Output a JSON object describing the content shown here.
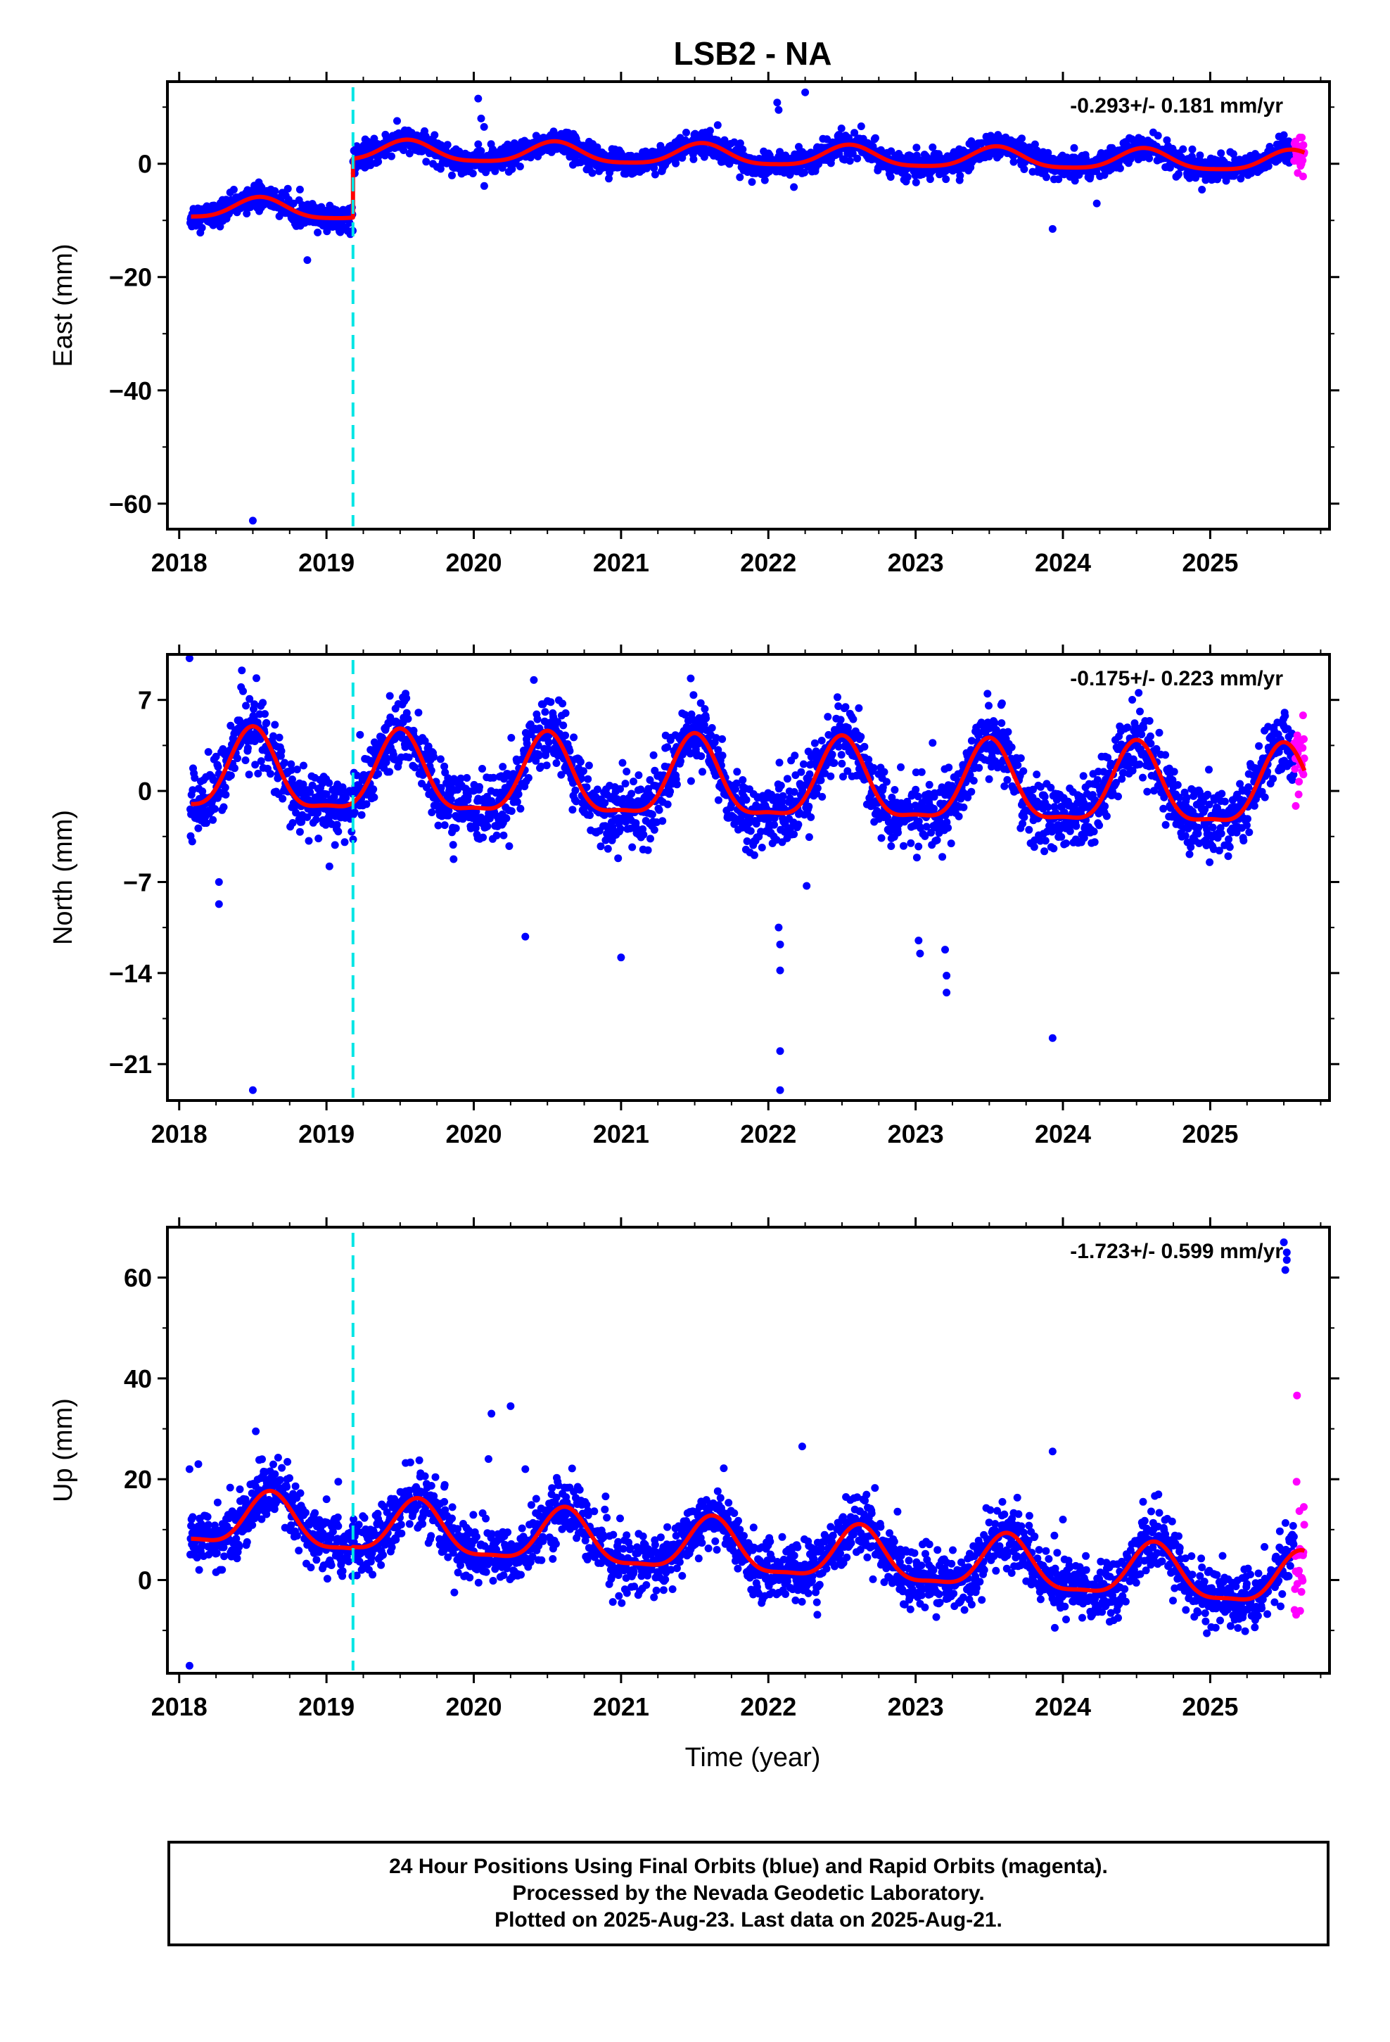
{
  "colors": {
    "final_orbits": "#0000ff",
    "rapid_orbits": "#ff00ff",
    "model": "#ff0000",
    "equipment_change": "#00e5e5"
  },
  "chart_data": {
    "type": "scatter",
    "title": "LSB2 - NA",
    "xlabel": "Time (year)",
    "x_ticks": [
      2018,
      2019,
      2020,
      2021,
      2022,
      2023,
      2024,
      2025
    ],
    "xlim": [
      2017.92,
      2025.81
    ],
    "equipment_change_x": 2019.18,
    "step_x": 2019.18,
    "rapid_start_x": 2025.57,
    "last_x": 2025.64,
    "panels": [
      {
        "ylabel": "East (mm)",
        "rate": "-0.293+/- 0.181 mm/yr",
        "ylim": [
          -64.5,
          14.5
        ],
        "y_ticks": [
          0,
          -20,
          -40,
          -60
        ],
        "y_minor": [
          10,
          -10,
          -30,
          -50
        ],
        "model": {
          "offset_before": -9.0,
          "offset_after": 1.4,
          "slope": -0.293,
          "annual_amp": 1.8,
          "annual_peak": 0.55,
          "semiannual_amp": 0.4
        },
        "noise_sd": 1.1,
        "outliers": [
          [
            2018.5,
            -63.0
          ],
          [
            2018.87,
            -17.0
          ],
          [
            2020.03,
            11.5
          ],
          [
            2020.05,
            8.0
          ],
          [
            2020.07,
            6.5
          ],
          [
            2022.06,
            10.8
          ],
          [
            2022.07,
            9.5
          ],
          [
            2022.25,
            12.6
          ],
          [
            2023.93,
            -11.5
          ],
          [
            2024.23,
            -7.0
          ]
        ]
      },
      {
        "ylabel": "North (mm)",
        "rate": "-0.175+/- 0.223 mm/yr",
        "ylim": [
          -23.8,
          10.5
        ],
        "y_ticks": [
          7,
          0,
          -7,
          -14,
          -21
        ],
        "y_minor": [
          3.5,
          -3.5,
          -10.5,
          -17.5
        ],
        "model": {
          "offset_before": 0.5,
          "offset_after": 0.5,
          "slope": -0.175,
          "annual_amp": 3.0,
          "annual_peak": 0.5,
          "semiannual_amp": 0.9
        },
        "noise_sd": 1.3,
        "outliers": [
          [
            2018.07,
            10.2
          ],
          [
            2018.27,
            -7.0
          ],
          [
            2018.27,
            -8.7
          ],
          [
            2018.5,
            -23.0
          ],
          [
            2019.02,
            -5.8
          ],
          [
            2020.35,
            -11.2
          ],
          [
            2021.0,
            -12.8
          ],
          [
            2022.07,
            -10.5
          ],
          [
            2022.08,
            -11.8
          ],
          [
            2022.08,
            -13.8
          ],
          [
            2022.08,
            -20.0
          ],
          [
            2022.08,
            -23.0
          ],
          [
            2022.26,
            -7.3
          ],
          [
            2023.02,
            -11.5
          ],
          [
            2023.03,
            -12.5
          ],
          [
            2023.2,
            -12.2
          ],
          [
            2023.21,
            -14.2
          ],
          [
            2023.21,
            -15.5
          ],
          [
            2023.93,
            -19.0
          ]
        ]
      },
      {
        "ylabel": "Up (mm)",
        "rate": "-1.723+/- 0.599 mm/yr",
        "ylim": [
          -18.5,
          70.0
        ],
        "y_ticks": [
          60,
          40,
          20,
          0
        ],
        "y_minor": [
          50,
          30,
          10,
          -10
        ],
        "model": {
          "offset_before": 5.5,
          "offset_after": 5.8,
          "slope": -1.723,
          "annual_amp": 5.2,
          "annual_peak": 0.62,
          "semiannual_amp": 1.5
        },
        "noise_sd": 3.0,
        "outliers": [
          [
            2018.07,
            -17.0
          ],
          [
            2018.07,
            22.0
          ],
          [
            2018.13,
            23.0
          ],
          [
            2018.52,
            29.5
          ],
          [
            2018.65,
            21.0
          ],
          [
            2019.08,
            19.5
          ],
          [
            2019.8,
            18.5
          ],
          [
            2020.1,
            24.0
          ],
          [
            2020.12,
            33.0
          ],
          [
            2020.25,
            34.5
          ],
          [
            2020.35,
            22.0
          ],
          [
            2022.23,
            26.5
          ],
          [
            2023.93,
            25.5
          ],
          [
            2024.0,
            12.0
          ],
          [
            2025.5,
            67.0
          ],
          [
            2025.52,
            63.5
          ],
          [
            2025.51,
            61.5
          ],
          [
            2025.52,
            65.0
          ]
        ]
      }
    ]
  },
  "caption": {
    "line1": "24 Hour Positions Using Final Orbits (blue) and Rapid Orbits (magenta).",
    "line2": "Processed by the Nevada Geodetic Laboratory.",
    "line3": "Plotted on 2025-Aug-23. Last data on 2025-Aug-21."
  }
}
